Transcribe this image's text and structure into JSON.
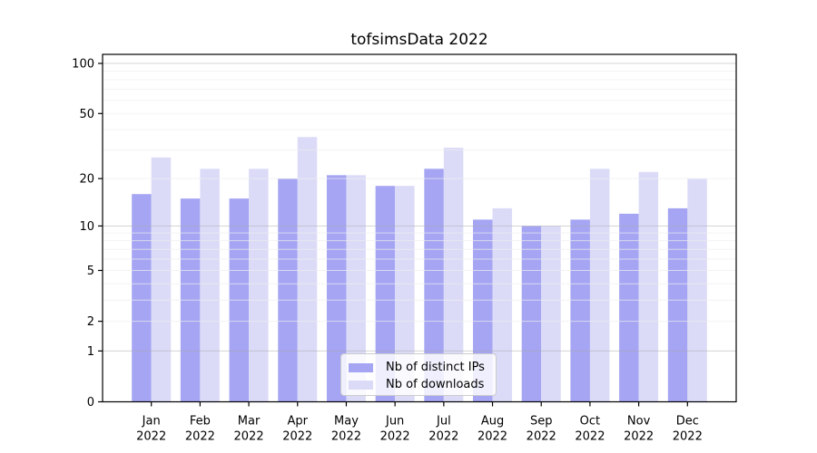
{
  "chart_data": {
    "type": "bar",
    "title": "tofsimsData 2022",
    "categories": [
      "Jan",
      "Feb",
      "Mar",
      "Apr",
      "May",
      "Jun",
      "Jul",
      "Aug",
      "Sep",
      "Oct",
      "Nov",
      "Dec"
    ],
    "category_year_label": "2022",
    "series": [
      {
        "name": "Nb of distinct IPs",
        "color": "#a5a5f3",
        "values": [
          16,
          15,
          15,
          20,
          21,
          18,
          23,
          11,
          10,
          11,
          12,
          13
        ]
      },
      {
        "name": "Nb of downloads",
        "color": "#dbdbf8",
        "values": [
          27,
          23,
          23,
          36,
          21,
          18,
          31,
          13,
          10,
          23,
          22,
          20
        ]
      }
    ],
    "yscale": "log1p",
    "ylim": [
      0,
      113
    ],
    "yticks": [
      100,
      50,
      20,
      10,
      5,
      2,
      1,
      0
    ],
    "major_gridlines": [
      1,
      10,
      100
    ],
    "minor_gridlines": [
      2,
      3,
      4,
      5,
      6,
      7,
      8,
      9,
      20,
      30,
      40,
      50,
      60,
      70,
      80,
      90
    ],
    "grid": true,
    "legend_position": "lower center",
    "colors": {
      "spine": "#000000",
      "major_grid": "#aaaaaa",
      "minor_grid": "#eeeeee",
      "text": "#000000"
    }
  }
}
